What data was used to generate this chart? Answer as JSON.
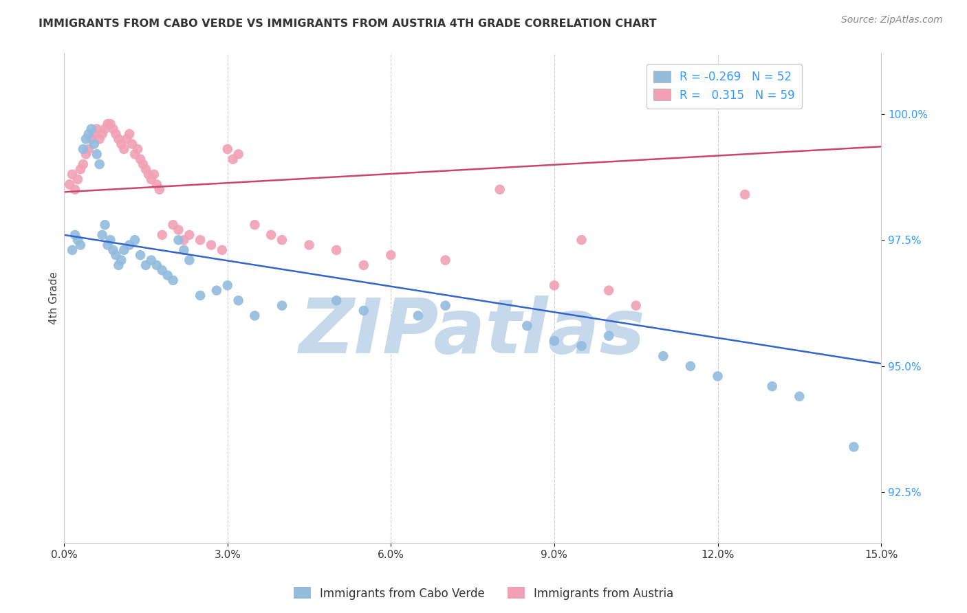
{
  "title": "IMMIGRANTS FROM CABO VERDE VS IMMIGRANTS FROM AUSTRIA 4TH GRADE CORRELATION CHART",
  "source": "Source: ZipAtlas.com",
  "ylabel": "4th Grade",
  "xlim": [
    0.0,
    15.0
  ],
  "ylim": [
    91.5,
    101.2
  ],
  "yticks": [
    92.5,
    95.0,
    97.5,
    100.0
  ],
  "ytick_labels": [
    "92.5%",
    "95.0%",
    "97.5%",
    "100.0%"
  ],
  "xticks": [
    0.0,
    3.0,
    6.0,
    9.0,
    12.0,
    15.0
  ],
  "xtick_labels": [
    "0.0%",
    "3.0%",
    "6.0%",
    "9.0%",
    "12.0%",
    "15.0%"
  ],
  "legend_cabo_R": "-0.269",
  "legend_cabo_N": "52",
  "legend_austria_R": "0.315",
  "legend_austria_N": "59",
  "cabo_verde_color": "#92bbde",
  "austria_color": "#f2a0b5",
  "cabo_verde_line_color": "#3366cc",
  "austria_line_color": "#cc4466",
  "watermark": "ZIPatlas",
  "watermark_color": "#c5d8ec",
  "background_color": "#ffffff",
  "cabo_x": [
    0.15,
    0.2,
    0.25,
    0.3,
    0.35,
    0.4,
    0.45,
    0.5,
    0.55,
    0.6,
    0.65,
    0.7,
    0.75,
    0.8,
    0.85,
    0.9,
    0.95,
    1.0,
    1.05,
    1.1,
    1.2,
    1.3,
    1.4,
    1.5,
    1.6,
    1.7,
    1.8,
    1.9,
    2.0,
    2.1,
    2.2,
    2.3,
    2.5,
    2.8,
    3.0,
    3.2,
    3.5,
    4.0,
    5.0,
    5.5,
    6.5,
    7.0,
    8.5,
    9.0,
    9.5,
    10.0,
    11.0,
    11.5,
    12.0,
    13.0,
    13.5,
    14.5
  ],
  "cabo_y": [
    97.3,
    97.6,
    97.5,
    97.4,
    99.3,
    99.5,
    99.6,
    99.7,
    99.4,
    99.2,
    99.0,
    97.6,
    97.8,
    97.4,
    97.5,
    97.3,
    97.2,
    97.0,
    97.1,
    97.3,
    97.4,
    97.5,
    97.2,
    97.0,
    97.1,
    97.0,
    96.9,
    96.8,
    96.7,
    97.5,
    97.3,
    97.1,
    96.4,
    96.5,
    96.6,
    96.3,
    96.0,
    96.2,
    96.3,
    96.1,
    96.0,
    96.2,
    95.8,
    95.5,
    95.4,
    95.6,
    95.2,
    95.0,
    94.8,
    94.6,
    94.4,
    93.4
  ],
  "austria_x": [
    0.1,
    0.15,
    0.2,
    0.25,
    0.3,
    0.35,
    0.4,
    0.45,
    0.5,
    0.55,
    0.6,
    0.65,
    0.7,
    0.75,
    0.8,
    0.85,
    0.9,
    0.95,
    1.0,
    1.05,
    1.1,
    1.15,
    1.2,
    1.25,
    1.3,
    1.35,
    1.4,
    1.45,
    1.5,
    1.55,
    1.6,
    1.65,
    1.7,
    1.75,
    1.8,
    2.0,
    2.1,
    2.2,
    2.3,
    2.5,
    2.7,
    2.9,
    3.0,
    3.1,
    3.2,
    3.5,
    3.8,
    4.0,
    4.5,
    5.0,
    5.5,
    6.0,
    7.0,
    8.0,
    9.0,
    9.5,
    10.0,
    10.5,
    12.5
  ],
  "austria_y": [
    98.6,
    98.8,
    98.5,
    98.7,
    98.9,
    99.0,
    99.2,
    99.3,
    99.5,
    99.6,
    99.7,
    99.5,
    99.6,
    99.7,
    99.8,
    99.8,
    99.7,
    99.6,
    99.5,
    99.4,
    99.3,
    99.5,
    99.6,
    99.4,
    99.2,
    99.3,
    99.1,
    99.0,
    98.9,
    98.8,
    98.7,
    98.8,
    98.6,
    98.5,
    97.6,
    97.8,
    97.7,
    97.5,
    97.6,
    97.5,
    97.4,
    97.3,
    99.3,
    99.1,
    99.2,
    97.8,
    97.6,
    97.5,
    97.4,
    97.3,
    97.0,
    97.2,
    97.1,
    98.5,
    96.6,
    97.5,
    96.5,
    96.2,
    98.4
  ]
}
